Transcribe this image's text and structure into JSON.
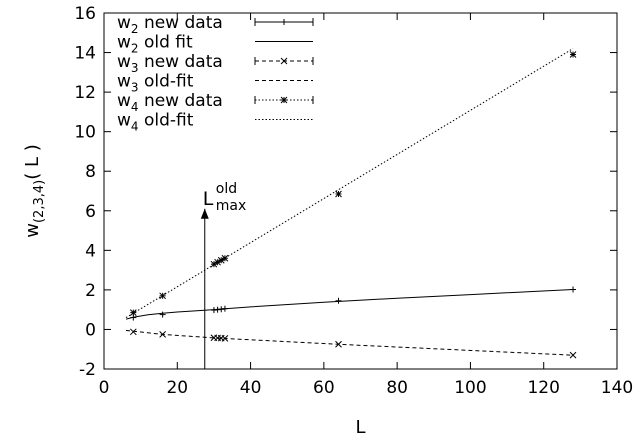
{
  "chart_data": {
    "type": "line",
    "xlabel": "L",
    "ylabel": {
      "base": "w",
      "sub": "(2,3,4)",
      "suffix": "( L )"
    },
    "xlim": [
      0,
      140
    ],
    "ylim": [
      -2,
      16
    ],
    "xticks": [
      0,
      20,
      40,
      60,
      80,
      100,
      120,
      140
    ],
    "yticks": [
      -2,
      0,
      2,
      4,
      6,
      8,
      10,
      12,
      14,
      16
    ],
    "grid": false,
    "legend_position": "top-left",
    "annotation": {
      "base": "L",
      "sub": "max",
      "sup": "old",
      "x": 27.5,
      "y_from": -2,
      "y_to": 6.1
    },
    "series": [
      {
        "name_base": "w",
        "name_sub": "2",
        "name_rest": "new data",
        "kind": "points",
        "marker": "plus",
        "errorbars": true,
        "x": [
          8,
          16,
          30,
          31,
          32,
          33,
          64,
          128
        ],
        "y": [
          0.6,
          0.75,
          0.98,
          1.0,
          1.02,
          1.05,
          1.45,
          2.02
        ]
      },
      {
        "name_base": "w",
        "name_sub": "2",
        "name_rest": "old fit",
        "kind": "line",
        "dash": "solid",
        "x": [
          6,
          8,
          12,
          16,
          20,
          28,
          40,
          60,
          80,
          100,
          128
        ],
        "y": [
          0.52,
          0.62,
          0.74,
          0.82,
          0.88,
          0.98,
          1.14,
          1.38,
          1.58,
          1.76,
          2.02
        ]
      },
      {
        "name_base": "w",
        "name_sub": "3",
        "name_rest": "new data",
        "kind": "points",
        "marker": "cross",
        "errorbars": true,
        "x": [
          8,
          16,
          30,
          31,
          32,
          33,
          64,
          128
        ],
        "y": [
          -0.12,
          -0.25,
          -0.42,
          -0.43,
          -0.44,
          -0.45,
          -0.75,
          -1.3
        ]
      },
      {
        "name_base": "w",
        "name_sub": "3",
        "name_rest": "old-fit",
        "kind": "line",
        "dash": "medium",
        "x": [
          6,
          16,
          30,
          64,
          128
        ],
        "y": [
          -0.05,
          -0.25,
          -0.43,
          -0.75,
          -1.3
        ]
      },
      {
        "name_base": "w",
        "name_sub": "4",
        "name_rest": "new data",
        "kind": "points",
        "marker": "star",
        "errorbars": true,
        "x": [
          8,
          16,
          30,
          31,
          32,
          33,
          64,
          128
        ],
        "y": [
          0.85,
          1.7,
          3.3,
          3.4,
          3.5,
          3.6,
          6.85,
          13.9
        ]
      },
      {
        "name_base": "w",
        "name_sub": "4",
        "name_rest": "old-fit",
        "kind": "line",
        "dash": "dotted",
        "x": [
          6,
          128
        ],
        "y": [
          0.6,
          14.2
        ]
      }
    ]
  }
}
